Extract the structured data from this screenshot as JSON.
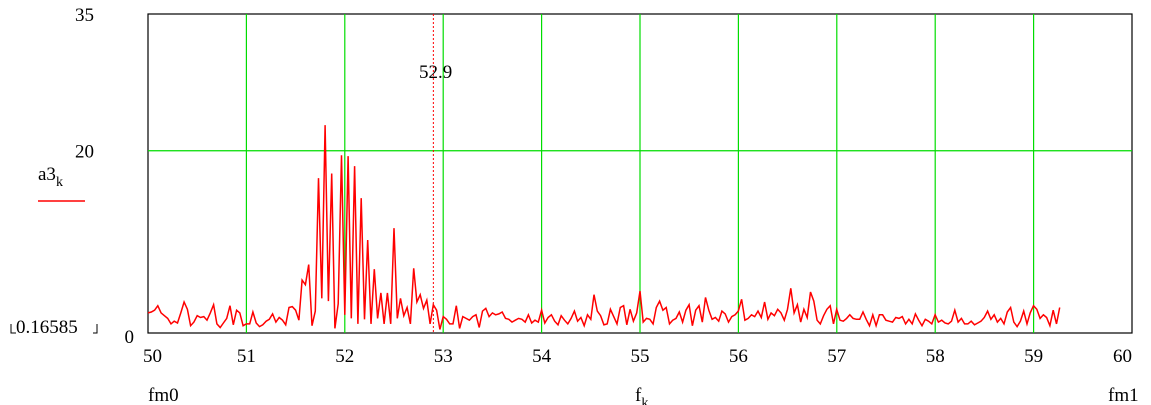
{
  "chart_data": {
    "type": "line",
    "x_axis": {
      "min": 50,
      "max": 60,
      "ticks": [
        50,
        51,
        52,
        53,
        54,
        55,
        56,
        57,
        58,
        59,
        60
      ],
      "range_start_label": "fm0",
      "range_end_label": "fm1",
      "label_main": "f",
      "label_sub": "k"
    },
    "y_axis": {
      "min": 0,
      "max": 35,
      "ticks": [
        0,
        20,
        35
      ],
      "lower_bound_label": "0.16585",
      "label_main": "a3",
      "label_sub": "k"
    },
    "marker": {
      "x": 52.9,
      "label": "52.9"
    },
    "grid": true,
    "colors": {
      "series": "#ff0000",
      "grid": "#00dd00",
      "marker": "#ff0000",
      "frame": "#000000"
    },
    "series": [
      {
        "color": "#ff0000",
        "x_start": 50,
        "x_step": 0.03333,
        "values": [
          2.2,
          2.3,
          2.5,
          3.0,
          2.2,
          1.9,
          1.6,
          1.0,
          1.3,
          1.1,
          2.2,
          3.4,
          2.6,
          0.8,
          1.2,
          1.9,
          1.7,
          1.8,
          1.4,
          2.2,
          3.1,
          1.0,
          0.6,
          1.1,
          1.6,
          3.0,
          0.9,
          2.5,
          2.2,
          0.8,
          1.0,
          1.0,
          2.3,
          1.1,
          0.7,
          0.9,
          1.3,
          1.5,
          2.1,
          1.2,
          1.7,
          1.4,
          0.9,
          2.8,
          2.9,
          2.5,
          1.4,
          5.8,
          5.3,
          7.5,
          0.8,
          2.4,
          17.0,
          3.8,
          22.8,
          3.5,
          17.5,
          0.5,
          3.2,
          19.5,
          2.0,
          19.4,
          1.6,
          18.3,
          1.0,
          14.8,
          1.5,
          10.2,
          1.0,
          7.0,
          1.6,
          4.4,
          1.0,
          4.4,
          1.0,
          11.5,
          1.6,
          3.8,
          1.9,
          2.8,
          1.0,
          7.1,
          3.4,
          4.2,
          2.7,
          3.6,
          1.0,
          3.1,
          2.5,
          0.4,
          1.8,
          1.5,
          1.0,
          1.0,
          3.0,
          0.5,
          1.8,
          1.6,
          1.4,
          1.8,
          2.0,
          0.6,
          2.4,
          2.7,
          1.8,
          2.2,
          2.0,
          2.1,
          2.3,
          1.6,
          1.5,
          1.2,
          1.4,
          1.6,
          1.5,
          1.2,
          2.0,
          1.1,
          1.4,
          1.2,
          2.5,
          1.1,
          1.7,
          2.0,
          1.3,
          0.9,
          1.9,
          1.4,
          1.0,
          1.6,
          2.4,
          1.3,
          1.7,
          0.8,
          2.0,
          1.5,
          4.2,
          2.4,
          1.9,
          0.9,
          1.0,
          2.6,
          1.8,
          1.0,
          2.8,
          3.0,
          0.9,
          2.6,
          1.3,
          2.2,
          4.6,
          1.2,
          1.6,
          1.5,
          1.0,
          2.8,
          3.5,
          2.5,
          2.8,
          1.0,
          1.4,
          1.6,
          2.3,
          1.2,
          2.5,
          3.1,
          0.8,
          2.5,
          3.0,
          1.2,
          3.9,
          2.5,
          1.5,
          1.7,
          1.3,
          2.4,
          2.1,
          1.2,
          1.8,
          2.0,
          2.4,
          3.7,
          1.4,
          1.6,
          2.0,
          1.8,
          2.4,
          1.7,
          3.4,
          1.5,
          2.2,
          1.9,
          2.6,
          2.2,
          1.4,
          2.6,
          4.9,
          2.2,
          3.1,
          1.2,
          2.6,
          1.7,
          4.5,
          3.5,
          1.4,
          1.0,
          1.9,
          2.6,
          3.0,
          1.0,
          2.6,
          1.4,
          1.3,
          1.6,
          2.0,
          1.6,
          1.5,
          1.5,
          2.3,
          1.5,
          0.8,
          2.0,
          0.8,
          2.0,
          2.0,
          1.4,
          1.3,
          1.2,
          1.7,
          1.6,
          1.8,
          1.0,
          1.5,
          1.0,
          2.1,
          1.4,
          0.8,
          1.5,
          1.3,
          1.0,
          2.0,
          1.2,
          1.4,
          1.1,
          1.0,
          1.3,
          2.5,
          1.2,
          1.6,
          1.0,
          1.0,
          1.3,
          0.9,
          1.1,
          1.3,
          1.7,
          2.4,
          1.5,
          2.0,
          1.2,
          1.6,
          1.0,
          2.3,
          2.8,
          1.2,
          0.7,
          1.3,
          2.4,
          1.0,
          2.2,
          3.0,
          2.6,
          1.6,
          2.0,
          1.7,
          0.8,
          2.5,
          1.0,
          2.8
        ]
      }
    ]
  }
}
